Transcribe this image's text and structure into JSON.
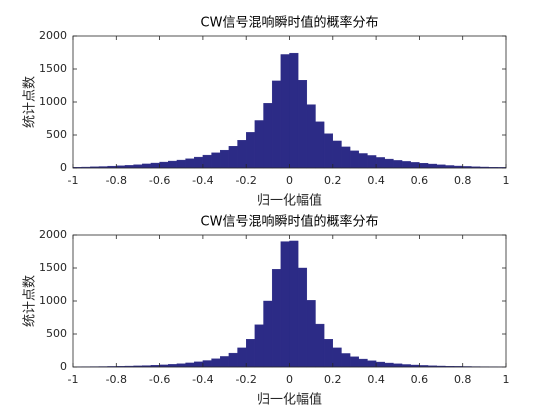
{
  "chart_data": [
    {
      "type": "histogram",
      "title": "CW信号混响瞬时值的概率分布",
      "xlabel": "归一化幅值",
      "ylabel": "统计点数",
      "color": "#2c2b86",
      "bins": [
        -1,
        -0.96,
        -0.92,
        -0.88,
        -0.84,
        -0.8,
        -0.76,
        -0.72,
        -0.68,
        -0.64,
        -0.6,
        -0.56,
        -0.52,
        -0.48,
        -0.44,
        -0.4,
        -0.36,
        -0.32,
        -0.28,
        -0.24,
        -0.2,
        -0.16,
        -0.12,
        -0.08,
        -0.04,
        0,
        0.04,
        0.08,
        0.12,
        0.16,
        0.2,
        0.24,
        0.28,
        0.32,
        0.36,
        0.4,
        0.44,
        0.48,
        0.52,
        0.56,
        0.6,
        0.64,
        0.68,
        0.72,
        0.76,
        0.8,
        0.84,
        0.88,
        0.92,
        0.96,
        1
      ],
      "counts": [
        12,
        14,
        18,
        22,
        28,
        34,
        40,
        50,
        62,
        75,
        90,
        105,
        120,
        140,
        165,
        195,
        230,
        270,
        330,
        420,
        540,
        720,
        980,
        1320,
        1720,
        1740,
        1330,
        960,
        700,
        520,
        410,
        320,
        260,
        220,
        190,
        160,
        135,
        115,
        100,
        85,
        72,
        60,
        48,
        38,
        30,
        24,
        19,
        15,
        12,
        10
      ],
      "xlim": [
        -1,
        1
      ],
      "xticks": [
        -1,
        -0.8,
        -0.6,
        -0.4,
        -0.2,
        0,
        0.2,
        0.4,
        0.6,
        0.8,
        1
      ],
      "ylim": [
        0,
        2000
      ],
      "yticks": [
        0,
        500,
        1000,
        1500,
        2000
      ]
    },
    {
      "type": "histogram",
      "title": "CW信号混响瞬时值的概率分布",
      "xlabel": "归一化幅值",
      "ylabel": "统计点数",
      "color": "#2c2b86",
      "bins": [
        -1,
        -0.96,
        -0.92,
        -0.88,
        -0.84,
        -0.8,
        -0.76,
        -0.72,
        -0.68,
        -0.64,
        -0.6,
        -0.56,
        -0.52,
        -0.48,
        -0.44,
        -0.4,
        -0.36,
        -0.32,
        -0.28,
        -0.24,
        -0.2,
        -0.16,
        -0.12,
        -0.08,
        -0.04,
        0,
        0.04,
        0.08,
        0.12,
        0.16,
        0.2,
        0.24,
        0.28,
        0.32,
        0.36,
        0.4,
        0.44,
        0.48,
        0.52,
        0.56,
        0.6,
        0.64,
        0.68,
        0.72,
        0.76,
        0.8,
        0.84,
        0.88,
        0.92,
        0.96,
        1
      ],
      "counts": [
        4,
        5,
        6,
        7,
        9,
        11,
        14,
        17,
        21,
        26,
        32,
        40,
        50,
        62,
        78,
        98,
        125,
        160,
        210,
        290,
        420,
        640,
        1000,
        1480,
        1900,
        1910,
        1500,
        1010,
        650,
        420,
        290,
        205,
        155,
        120,
        95,
        75,
        60,
        48,
        38,
        30,
        24,
        19,
        15,
        12,
        10,
        8,
        6,
        5,
        4,
        3
      ],
      "xlim": [
        -1,
        1
      ],
      "xticks": [
        -1,
        -0.8,
        -0.6,
        -0.4,
        -0.2,
        0,
        0.2,
        0.4,
        0.6,
        0.8,
        1
      ],
      "ylim": [
        0,
        2000
      ],
      "yticks": [
        0,
        500,
        1000,
        1500,
        2000
      ]
    }
  ]
}
